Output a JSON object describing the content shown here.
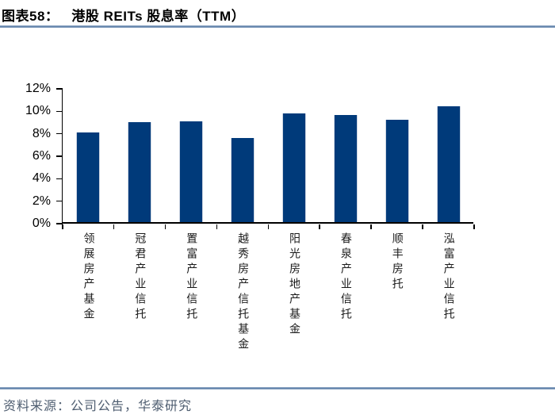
{
  "header": {
    "figure_label": "图表58：",
    "title": "港股 REITs 股息率（TTM）"
  },
  "footer": {
    "source": "资料来源：公司公告，华泰研究"
  },
  "colors": {
    "bar": "#003A7A",
    "bar_edge": "#cdd5e2",
    "axis": "#000000",
    "divider_blue": "#5d7ea7",
    "source_text": "#4e5d70"
  },
  "chart_data": {
    "type": "bar",
    "title": "港股 REITs 股息率（TTM）",
    "categories": [
      "领展房产基金",
      "冠君产业信托",
      "置富产业信托",
      "越秀房产信托基金",
      "阳光房地产基金",
      "春泉产业信托",
      "顺丰房托",
      "泓富产业信托"
    ],
    "values": [
      8.0,
      8.9,
      9.0,
      7.5,
      9.7,
      9.5,
      9.1,
      10.3
    ],
    "unit": "%",
    "xlabel": "",
    "ylabel": "",
    "ylim": [
      0,
      12
    ],
    "ytick_step": 2,
    "ytick_labels": [
      "0%",
      "2%",
      "4%",
      "6%",
      "8%",
      "10%",
      "12%"
    ],
    "grid": false,
    "legend_position": "none"
  }
}
